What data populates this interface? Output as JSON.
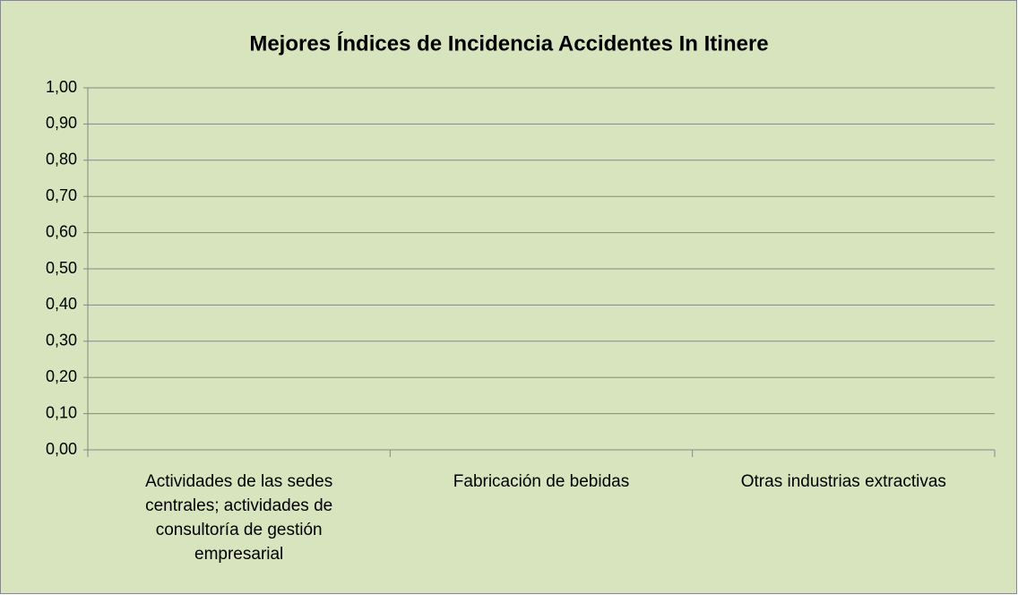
{
  "chart_data": {
    "type": "bar",
    "title": "Mejores Índices de Incidencia Accidentes In Itinere",
    "categories": [
      "Actividades de las sedes centrales; actividades de consultoría de gestión empresarial",
      "Fabricación de bebidas",
      "Otras industrias extractivas"
    ],
    "values": [
      0,
      0,
      0
    ],
    "color": "#4f81bd",
    "ylim": [
      0,
      1
    ],
    "yticks": [
      {
        "value": 0,
        "label": "0,00"
      },
      {
        "value": 0.1,
        "label": "0,10"
      },
      {
        "value": 0.2,
        "label": "0,20"
      },
      {
        "value": 0.3,
        "label": "0,30"
      },
      {
        "value": 0.4,
        "label": "0,40"
      },
      {
        "value": 0.5,
        "label": "0,50"
      },
      {
        "value": 0.6,
        "label": "0,60"
      },
      {
        "value": 0.7,
        "label": "0,70"
      },
      {
        "value": 0.8,
        "label": "0,80"
      },
      {
        "value": 0.9,
        "label": "0,90"
      },
      {
        "value": 1,
        "label": "1,00"
      }
    ],
    "grid": true
  }
}
